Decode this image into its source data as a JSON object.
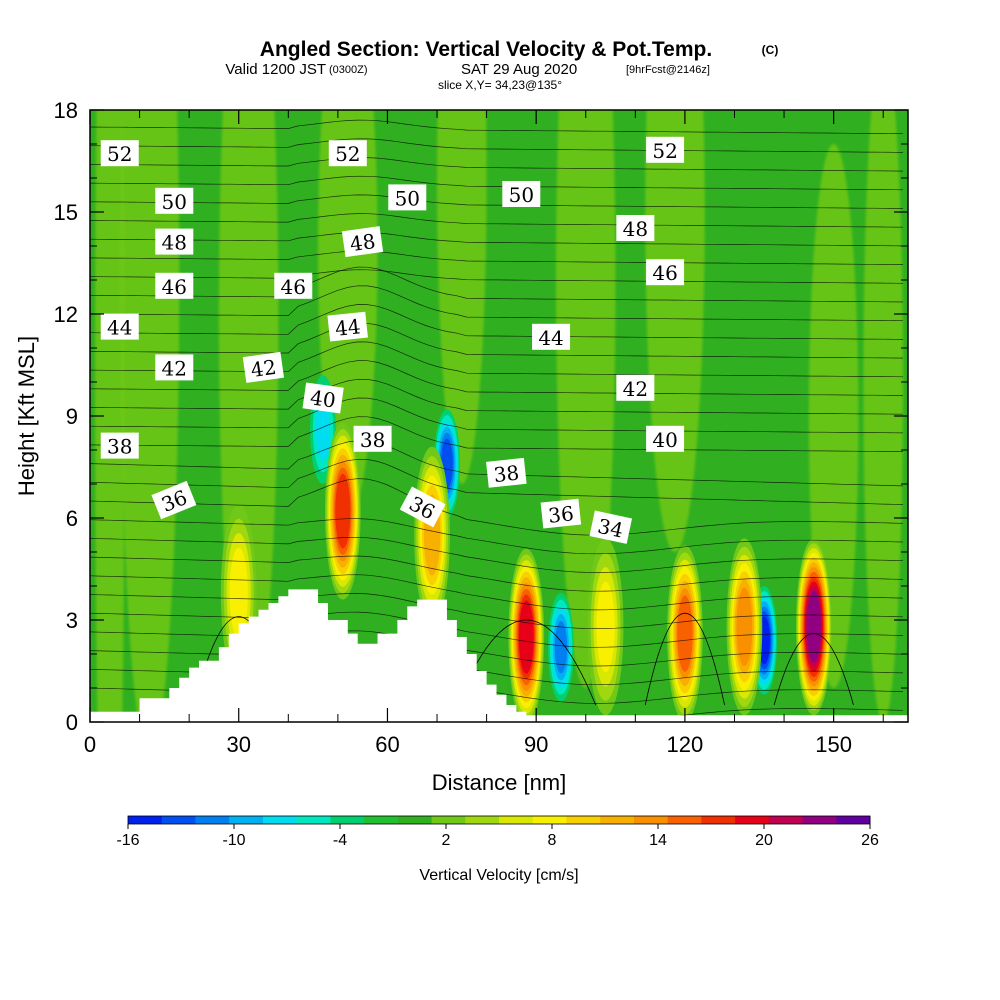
{
  "header": {
    "title": "Angled Section: Vertical Velocity & Pot.Temp.",
    "title_mark": "(C)",
    "valid_prefix": "Valid 1200 JST",
    "valid_utc": "(0300Z)",
    "valid_date": "SAT 29 Aug 2020",
    "forecast_info": "[9hrFcst@2146z]",
    "slice": "slice X,Y= 34,23@135°"
  },
  "chart_data": {
    "type": "heatmap",
    "title": "Angled Section: Vertical Velocity & Pot.Temp.",
    "xlabel": "Distance [nm]",
    "ylabel": "Height [Kft MSL]",
    "xlim": [
      0,
      165
    ],
    "ylim": [
      0,
      18
    ],
    "x_ticks": [
      "0",
      "30",
      "60",
      "90",
      "120",
      "150"
    ],
    "x_tick_values": [
      0,
      30,
      60,
      90,
      120,
      150
    ],
    "y_ticks": [
      "0",
      "3",
      "6",
      "9",
      "12",
      "15",
      "18"
    ],
    "y_tick_values": [
      0,
      3,
      6,
      9,
      12,
      15,
      18
    ],
    "colorbar": {
      "label": "Vertical Velocity [cm/s]",
      "tick_labels": [
        "-16",
        "-10",
        "-4",
        "2",
        "8",
        "14",
        "20",
        "26"
      ],
      "levels": [
        -16,
        -14,
        -12,
        -10,
        -8,
        -6,
        -4,
        -2,
        0,
        2,
        4,
        6,
        8,
        10,
        12,
        14,
        16,
        18,
        20,
        22,
        24,
        26
      ],
      "colors": [
        "#0020f0",
        "#0050f0",
        "#0080f0",
        "#00b0f0",
        "#00dcf0",
        "#00e8c0",
        "#00d070",
        "#20c030",
        "#30b020",
        "#70c818",
        "#a0d810",
        "#d8e800",
        "#f8f000",
        "#f8d000",
        "#f8b000",
        "#f89000",
        "#f86000",
        "#f03000",
        "#e80018",
        "#c00050",
        "#900080",
        "#6000a0"
      ]
    },
    "terrain_profile": {
      "x": [
        0,
        8,
        10,
        16,
        18,
        20,
        22,
        26,
        28,
        30,
        32,
        34,
        36,
        38,
        40,
        42,
        44,
        46,
        48,
        52,
        54,
        56,
        58,
        60,
        62,
        64,
        66,
        70,
        72,
        74,
        76,
        78,
        80,
        82,
        84,
        86,
        88
      ],
      "height_kft": [
        0.3,
        0.3,
        0.7,
        1.0,
        1.3,
        1.6,
        1.8,
        2.2,
        2.6,
        2.9,
        3.1,
        3.3,
        3.5,
        3.7,
        3.9,
        3.9,
        3.9,
        3.5,
        3.0,
        2.6,
        2.3,
        2.3,
        2.6,
        2.6,
        3.0,
        3.4,
        3.6,
        3.6,
        3.0,
        2.5,
        2.0,
        1.5,
        1.1,
        0.8,
        0.5,
        0.3,
        0.2
      ]
    },
    "updraft_cores": [
      {
        "x": 30,
        "height_kft": 3.8,
        "w_cm_s": 8
      },
      {
        "x": 51,
        "height_kft": 6.2,
        "w_cm_s": 18
      },
      {
        "x": 69,
        "height_kft": 5.5,
        "w_cm_s": 12
      },
      {
        "x": 88,
        "height_kft": 2.5,
        "w_cm_s": 20
      },
      {
        "x": 104,
        "height_kft": 2.8,
        "w_cm_s": 8
      },
      {
        "x": 120,
        "height_kft": 2.6,
        "w_cm_s": 16
      },
      {
        "x": 132,
        "height_kft": 2.8,
        "w_cm_s": 14
      },
      {
        "x": 146,
        "height_kft": 2.8,
        "w_cm_s": 24
      }
    ],
    "downdraft_cores": [
      {
        "x": 72,
        "height_kft": 7.6,
        "w_cm_s": -12
      },
      {
        "x": 95,
        "height_kft": 2.2,
        "w_cm_s": -10
      },
      {
        "x": 136,
        "height_kft": 2.4,
        "w_cm_s": -14
      },
      {
        "x": 47,
        "height_kft": 8.6,
        "w_cm_s": -6
      }
    ],
    "theta_contour_labels": [
      "52",
      "52",
      "52",
      "50",
      "50",
      "50",
      "48",
      "48",
      "48",
      "46",
      "46",
      "46",
      "44",
      "44",
      "44",
      "42",
      "42",
      "42",
      "40",
      "40",
      "38",
      "38",
      "38",
      "36",
      "36",
      "36",
      "34"
    ],
    "theta_contour_levels": [
      34,
      36,
      38,
      40,
      42,
      44,
      46,
      48,
      50,
      52
    ]
  }
}
